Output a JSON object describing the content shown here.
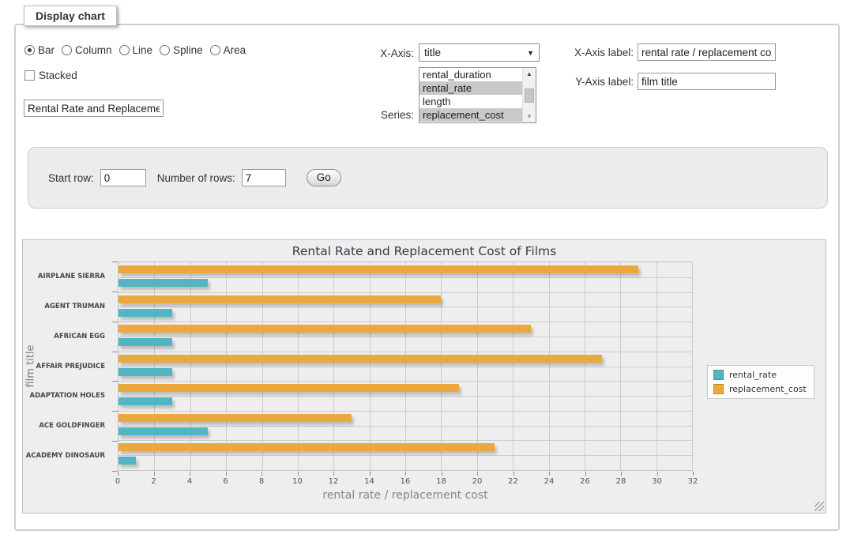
{
  "header": {
    "legend": "Display chart"
  },
  "controls": {
    "chart_types": [
      {
        "label": "Bar",
        "checked": true
      },
      {
        "label": "Column",
        "checked": false
      },
      {
        "label": "Line",
        "checked": false
      },
      {
        "label": "Spline",
        "checked": false
      },
      {
        "label": "Area",
        "checked": false
      }
    ],
    "stacked": {
      "label": "Stacked",
      "checked": false
    },
    "chart_title_input": {
      "value": "Rental Rate and Replacemer"
    },
    "x_axis": {
      "label": "X-Axis:",
      "selected": "title"
    },
    "series": {
      "label": "Series:",
      "options": [
        {
          "label": "rental_duration",
          "selected": false
        },
        {
          "label": "rental_rate",
          "selected": true
        },
        {
          "label": "length",
          "selected": false
        },
        {
          "label": "replacement_cost",
          "selected": true
        }
      ]
    },
    "x_axis_label": {
      "label": "X-Axis label:",
      "value": "rental rate / replacement cost"
    },
    "y_axis_label": {
      "label": "Y-Axis label:",
      "value": "film title"
    }
  },
  "row_controls": {
    "start_row_label": "Start row:",
    "start_row_value": "0",
    "num_rows_label": "Number of rows:",
    "num_rows_value": "7",
    "go_label": "Go"
  },
  "chart_data": {
    "type": "bar",
    "orientation": "horizontal",
    "title": "Rental Rate and Replacement Cost of Films",
    "xlabel": "rental rate / replacement cost",
    "ylabel": "film title",
    "categories": [
      "AIRPLANE SIERRA",
      "AGENT TRUMAN",
      "AFRICAN EGG",
      "AFFAIR PREJUDICE",
      "ADAPTATION HOLES",
      "ACE GOLDFINGER",
      "ACADEMY DINOSAUR"
    ],
    "series": [
      {
        "name": "rental_rate",
        "color": "#52B5C4",
        "values": [
          4.99,
          2.99,
          2.99,
          2.99,
          2.99,
          4.99,
          0.99
        ]
      },
      {
        "name": "replacement_cost",
        "color": "#EBA93B",
        "values": [
          28.99,
          17.99,
          22.99,
          26.99,
          18.99,
          12.99,
          20.99
        ]
      }
    ],
    "xlim": [
      0,
      32
    ],
    "xticks": [
      0,
      2,
      4,
      6,
      8,
      10,
      12,
      14,
      16,
      18,
      20,
      22,
      24,
      26,
      28,
      30,
      32
    ],
    "grid": true,
    "legend_position": "right"
  }
}
